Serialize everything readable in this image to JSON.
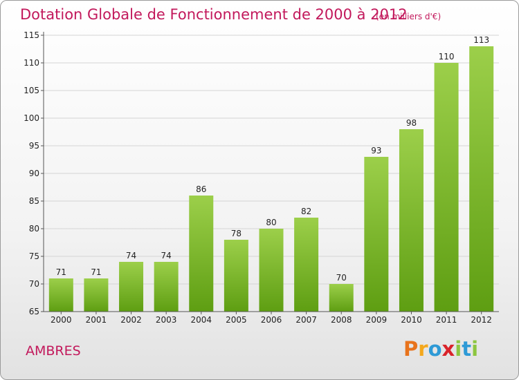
{
  "header": {
    "title": "Dotation Globale de Fonctionnement de 2000 à 2012",
    "unit": "(en milliers d'€)"
  },
  "footer": {
    "commune": "AMBRES",
    "logo": {
      "letters": [
        "P",
        "r",
        "o",
        "x",
        "i",
        "t",
        "i"
      ],
      "colors": [
        "#e8731c",
        "#f4a81d",
        "#2e9ad6",
        "#d9232a",
        "#8cc63f",
        "#2e9ad6",
        "#8cc63f"
      ]
    }
  },
  "chart_data": {
    "type": "bar",
    "categories": [
      "2000",
      "2001",
      "2002",
      "2003",
      "2004",
      "2005",
      "2006",
      "2007",
      "2008",
      "2009",
      "2010",
      "2011",
      "2012"
    ],
    "values": [
      71,
      71,
      74,
      74,
      86,
      78,
      80,
      82,
      70,
      93,
      98,
      110,
      113
    ],
    "ylim": [
      65,
      115
    ],
    "yticks": [
      65,
      70,
      75,
      80,
      85,
      90,
      95,
      100,
      105,
      110,
      115
    ],
    "grid": true,
    "bar_color_top": "#9ccf4a",
    "bar_color_bottom": "#5e9e12"
  }
}
